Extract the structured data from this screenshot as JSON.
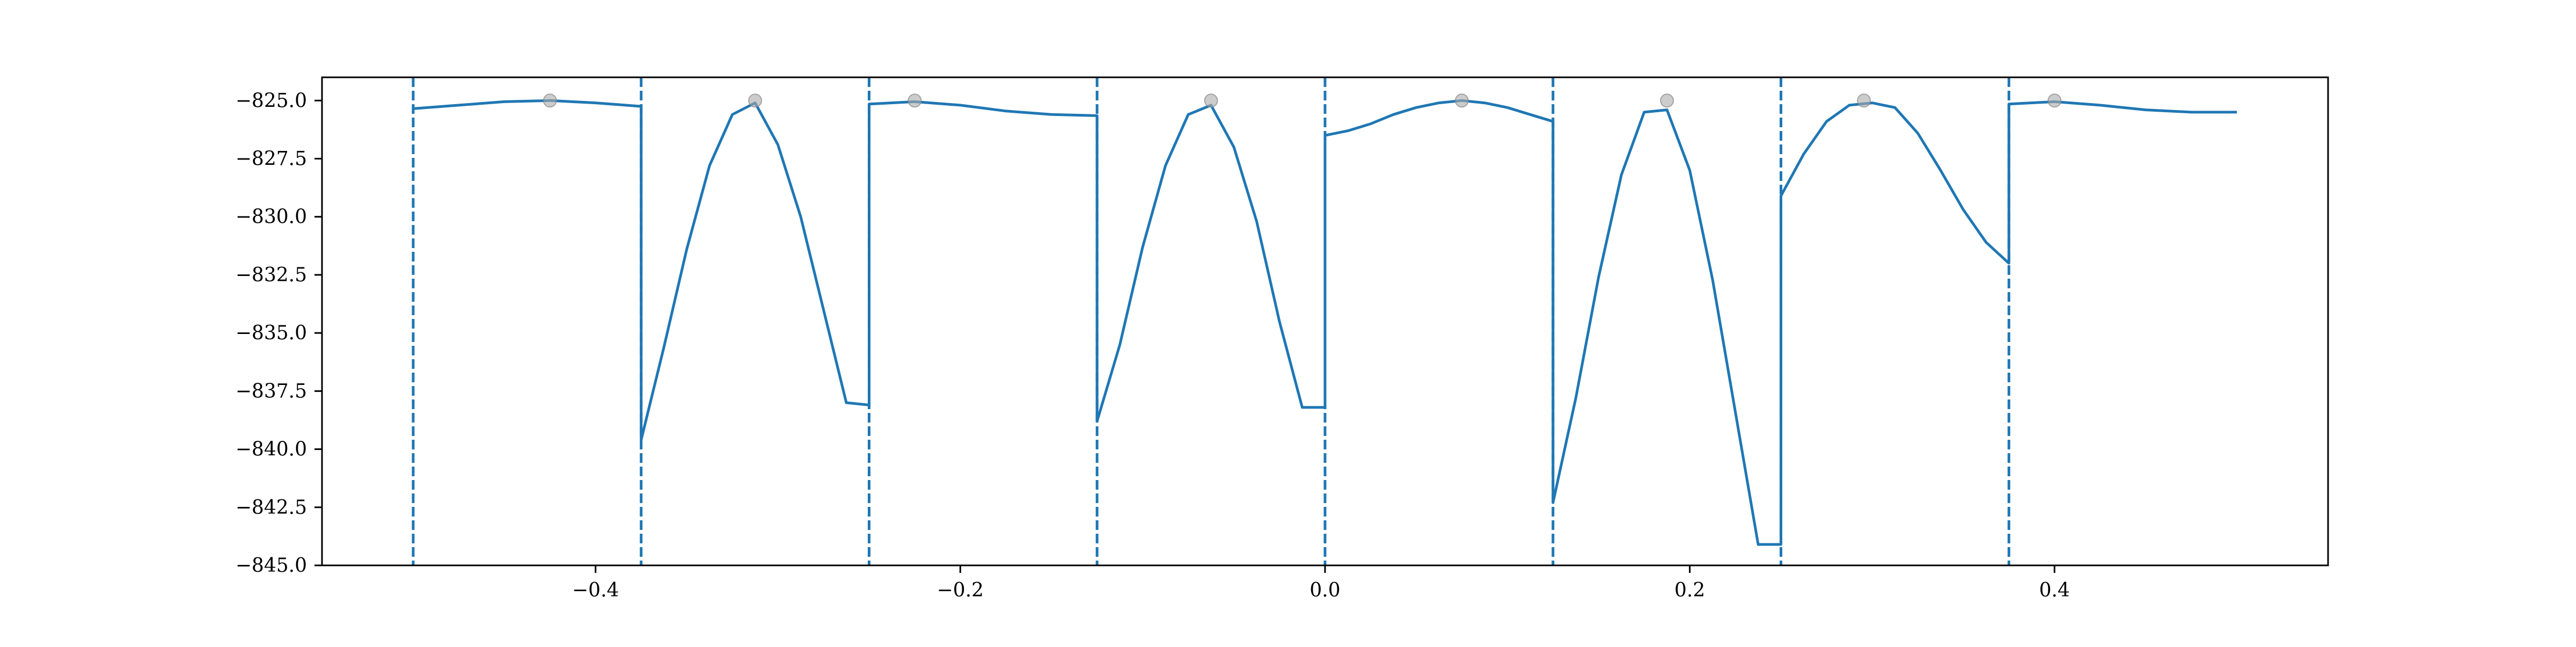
{
  "chart_data": {
    "type": "line",
    "title": "",
    "xlabel": "",
    "ylabel": "",
    "xlim": [
      -0.55,
      0.55
    ],
    "ylim": [
      -845.0,
      -824.0
    ],
    "x_ticks": [
      {
        "value": -0.4,
        "label": "−0.4"
      },
      {
        "value": -0.2,
        "label": "−0.2"
      },
      {
        "value": 0.0,
        "label": "0.0"
      },
      {
        "value": 0.2,
        "label": "0.2"
      },
      {
        "value": 0.4,
        "label": "0.4"
      }
    ],
    "y_ticks": [
      {
        "value": -825.0,
        "label": "−825.0"
      },
      {
        "value": -827.5,
        "label": "−827.5"
      },
      {
        "value": -830.0,
        "label": "−830.0"
      },
      {
        "value": -832.5,
        "label": "−832.5"
      },
      {
        "value": -835.0,
        "label": "−835.0"
      },
      {
        "value": -837.5,
        "label": "−837.5"
      },
      {
        "value": -840.0,
        "label": "−840.0"
      },
      {
        "value": -842.5,
        "label": "−842.5"
      },
      {
        "value": -845.0,
        "label": "−845.0"
      }
    ],
    "grid": false,
    "legend": "none",
    "colors": {
      "line": "#1f77b4",
      "markers": "#aaaaaa",
      "axes": "#000000"
    },
    "vertical_dashed_lines": [
      -0.5,
      -0.375,
      -0.25,
      -0.125,
      0.0,
      0.125,
      0.25,
      0.375
    ],
    "segments": [
      {
        "x": [
          -0.5,
          -0.475,
          -0.45,
          -0.425,
          -0.4,
          -0.375
        ],
        "y": [
          -825.35,
          -825.2,
          -825.05,
          -825.0,
          -825.1,
          -825.25
        ]
      },
      {
        "x": [
          -0.375,
          -0.3625,
          -0.35,
          -0.3375,
          -0.325,
          -0.3125,
          -0.3,
          -0.2875,
          -0.275,
          -0.2625,
          -0.25
        ],
        "y": [
          -839.6,
          -835.6,
          -831.4,
          -827.8,
          -825.6,
          -825.1,
          -826.9,
          -830.0,
          -834.0,
          -838.0,
          -838.1
        ]
      },
      {
        "x": [
          -0.25,
          -0.225,
          -0.2,
          -0.175,
          -0.15,
          -0.125
        ],
        "y": [
          -825.15,
          -825.05,
          -825.2,
          -825.45,
          -825.6,
          -825.65
        ]
      },
      {
        "x": [
          -0.125,
          -0.1125,
          -0.1,
          -0.0875,
          -0.075,
          -0.0625,
          -0.05,
          -0.0375,
          -0.025,
          -0.0125,
          0.0
        ],
        "y": [
          -838.8,
          -835.5,
          -831.3,
          -827.8,
          -825.6,
          -825.2,
          -827.0,
          -830.2,
          -834.5,
          -838.2,
          -838.2
        ]
      },
      {
        "x": [
          0.0,
          0.0125,
          0.025,
          0.0375,
          0.05,
          0.0625,
          0.075,
          0.0875,
          0.1,
          0.1125,
          0.125
        ],
        "y": [
          -826.5,
          -826.3,
          -826.0,
          -825.6,
          -825.3,
          -825.1,
          -825.0,
          -825.1,
          -825.3,
          -825.6,
          -825.9
        ]
      },
      {
        "x": [
          0.125,
          0.1375,
          0.15,
          0.1625,
          0.175,
          0.1875,
          0.2,
          0.2125,
          0.225,
          0.2375,
          0.25
        ],
        "y": [
          -842.3,
          -837.8,
          -832.6,
          -828.2,
          -825.5,
          -825.4,
          -828.0,
          -832.7,
          -838.4,
          -844.1,
          -844.1
        ]
      },
      {
        "x": [
          0.25,
          0.2625,
          0.275,
          0.2875,
          0.3,
          0.3125,
          0.325,
          0.3375,
          0.35,
          0.3625,
          0.375
        ],
        "y": [
          -829.1,
          -827.3,
          -825.9,
          -825.2,
          -825.1,
          -825.3,
          -826.4,
          -828.0,
          -829.7,
          -831.1,
          -832.0
        ]
      },
      {
        "x": [
          0.375,
          0.4,
          0.425,
          0.45,
          0.475,
          0.5
        ],
        "y": [
          -825.15,
          -825.05,
          -825.2,
          -825.4,
          -825.5,
          -825.5
        ]
      }
    ],
    "markers": {
      "x": [
        -0.425,
        -0.3125,
        -0.225,
        -0.0625,
        0.075,
        0.1875,
        0.2955,
        0.4
      ],
      "y": [
        -825.0,
        -825.0,
        -825.0,
        -825.0,
        -825.0,
        -825.0,
        -825.0,
        -825.0
      ]
    }
  }
}
